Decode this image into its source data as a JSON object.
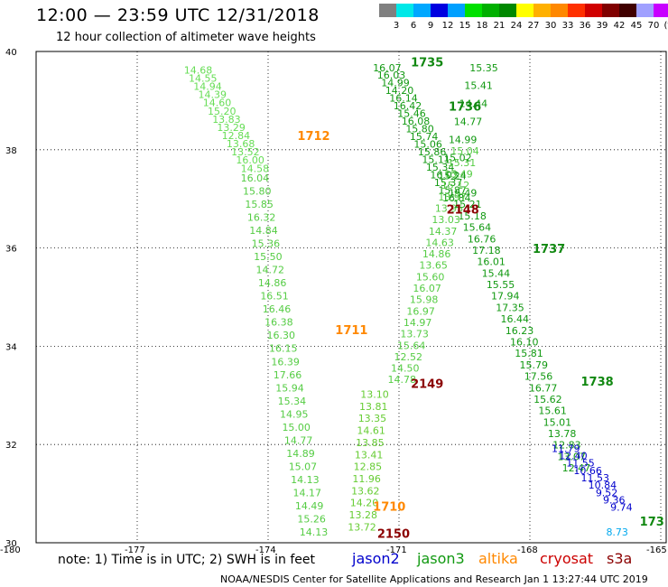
{
  "header": {
    "title": "12:00 — 23:59 UTC 12/31/2018",
    "subtitle": "12 hour collection of altimeter wave heights"
  },
  "legend": {
    "colors": [
      "#808080",
      "#00e8e8",
      "#00a8ff",
      "#0000e0",
      "#00a0ff",
      "#00e000",
      "#00b000",
      "#008800",
      "#ffff00",
      "#ffb000",
      "#ff8800",
      "#ff3000",
      "#d00000",
      "#800000",
      "#400000",
      "#a0a0ff",
      "#c800ff",
      "#000000"
    ],
    "labels": [
      "3",
      "6",
      "9",
      "12",
      "15",
      "18",
      "21",
      "24",
      "27",
      "30",
      "33",
      "36",
      "39",
      "42",
      "45",
      "70",
      "(ft)"
    ]
  },
  "map": {
    "lat_ticks": [
      "40",
      "38",
      "36",
      "34",
      "32",
      "30"
    ],
    "lon_ticks": [
      "-180",
      "-177",
      "-174",
      "-171",
      "-168",
      "-165"
    ],
    "lat_range": [
      30,
      40
    ],
    "lon_range": [
      -180,
      -165
    ]
  },
  "tracks": [
    {
      "name": "track-1712",
      "color": "#66dd55",
      "pass": "1712",
      "pass_color": "#ff8800",
      "pass_pos": [
        -173.2,
        38.2
      ],
      "start": [
        -175.9,
        39.55
      ],
      "end": [
        -174.55,
        37.55
      ],
      "values": [
        "14.68",
        "14.55",
        "14.94",
        "14.39",
        "14.60",
        "15.20",
        "13.83",
        "13.29",
        "12.84",
        "13.68",
        "13.52",
        "16.00",
        "14.58"
      ]
    },
    {
      "name": "track-1711",
      "color": "#55cc44",
      "pass": "1711",
      "pass_color": "#ff8800",
      "pass_pos": [
        -172.3,
        34.25
      ],
      "start": [
        -174.55,
        37.35
      ],
      "end": [
        -173.15,
        30.15
      ],
      "values": [
        "16.04",
        "15.80",
        "15.85",
        "16.32",
        "14.84",
        "15.36",
        "15.50",
        "14.72",
        "14.86",
        "16.51",
        "16.46",
        "16.38",
        "16.30",
        "16.15",
        "16.39",
        "17.66",
        "15.94",
        "15.34",
        "14.95",
        "15.00",
        "14.77",
        "14.89",
        "15.07",
        "14.13",
        "14.17",
        "14.49",
        "15.26",
        "14.13"
      ]
    },
    {
      "name": "track-1710",
      "color": "#66cc33",
      "pass": "1710",
      "pass_color": "#ff8800",
      "pass_pos": [
        -171.4,
        30.65
      ],
      "start": [
        -171.7,
        32.95
      ],
      "end": [
        -172.0,
        30.25
      ],
      "values": [
        "13.10",
        "13.81",
        "13.35",
        "14.61",
        "13.85",
        "13.41",
        "12.85",
        "11.96",
        "13.62",
        "14.20",
        "13.28",
        "13.72"
      ]
    },
    {
      "name": "track-2150",
      "color": "#66cc33",
      "pass": "2150",
      "pass_color": "#8b0000",
      "pass_pos": [
        -171.3,
        30.1
      ],
      "start": [
        -171.2,
        30.4
      ],
      "end": [
        -171.2,
        30.4
      ],
      "values": []
    },
    {
      "name": "track-1735",
      "color": "#119911",
      "pass": "1735",
      "pass_color": "#118811",
      "pass_pos": [
        -170.5,
        39.7
      ],
      "start": [
        -171.4,
        39.6
      ],
      "end": [
        -169.75,
        36.95
      ],
      "values": [
        "16.07",
        "16.03",
        "14.99",
        "14.20",
        "16.14",
        "16.42",
        "15.46",
        "16.08",
        "15.80",
        "15.74",
        "15.06",
        "15.86",
        "15.11",
        "15.34",
        "16.03",
        "15.37",
        "15.87",
        "16.84"
      ]
    },
    {
      "name": "track-2149",
      "color": "#55cc44",
      "pass": "2149",
      "pass_color": "#8b0000",
      "pass_pos": [
        -170.5,
        33.15
      ],
      "start": [
        -169.55,
        37.9
      ],
      "end": [
        -171.05,
        33.25
      ],
      "values": [
        "15.04",
        "15.31",
        "15.49",
        "15.12",
        "13.97",
        "13.95",
        "13.03",
        "14.37",
        "14.63",
        "14.86",
        "13.65",
        "15.60",
        "16.07",
        "15.98",
        "16.97",
        "14.97",
        "13.73",
        "15.64",
        "12.52",
        "14.50",
        "14.78"
      ]
    },
    {
      "name": "track-1736",
      "color": "#119911",
      "pass": "1736",
      "pass_color": "#118811",
      "pass_pos": [
        -169.6,
        38.8
      ],
      "start": [
        -169.1,
        39.6
      ],
      "end": [
        -169.85,
        37.4
      ],
      "values": [
        "15.35",
        "15.41",
        "14.44",
        "14.77",
        "14.99",
        "15.02",
        "15.24"
      ]
    },
    {
      "name": "track-1737",
      "color": "#119911",
      "pass": "1737",
      "pass_color": "#118811",
      "pass_pos": [
        -167.6,
        35.9
      ],
      "start": [
        -169.6,
        37.05
      ],
      "end": [
        -166.9,
        31.45
      ],
      "values": [
        "15.49",
        "15.21",
        "15.18",
        "15.64",
        "16.76",
        "17.18",
        "16.01",
        "15.44",
        "15.55",
        "17.94",
        "17.35",
        "16.44",
        "16.23",
        "16.10",
        "15.81",
        "15.79",
        "17.56",
        "16.77",
        "15.62",
        "15.61",
        "15.01",
        "13.78",
        "12.83",
        "13.07",
        "12.47"
      ]
    },
    {
      "name": "track-1738",
      "color": "#118811",
      "pass": "1738",
      "pass_color": "#118811",
      "pass_pos": [
        -166.45,
        33.2
      ],
      "start": [
        -166.45,
        33.2
      ],
      "end": [
        -166.45,
        33.2
      ],
      "values": []
    },
    {
      "name": "track-2148",
      "color": "#8b0000",
      "pass": "2148",
      "pass_color": "#8b0000",
      "pass_pos": [
        -169.65,
        36.7
      ],
      "start": [
        -169.65,
        36.7
      ],
      "end": [
        -169.65,
        36.7
      ],
      "values": []
    },
    {
      "name": "track-jason2",
      "color": "#0000cc",
      "pass": "",
      "pass_color": "#0000cc",
      "pass_pos": [
        -165.2,
        30.3
      ],
      "start": [
        -167.15,
        31.85
      ],
      "end": [
        -165.75,
        30.65
      ],
      "values": [
        "11.79",
        "12.40",
        "11.55",
        "10.66",
        "11.53",
        "10.84",
        "9.52",
        "9.36",
        "9.74"
      ]
    },
    {
      "name": "track-jason2-tail",
      "color": "#00a8ee",
      "pass": "",
      "pass_color": "#00a8ee",
      "pass_pos": [
        -165.2,
        30.3
      ],
      "start": [
        -165.85,
        30.15
      ],
      "end": [
        -165.85,
        30.15
      ],
      "values": [
        "8.73"
      ]
    },
    {
      "name": "track-173",
      "color": "#118811",
      "pass": "173",
      "pass_color": "#118811",
      "pass_pos": [
        -165.05,
        30.35
      ],
      "start": [
        -165.05,
        30.35
      ],
      "end": [
        -165.05,
        30.35
      ],
      "values": []
    }
  ],
  "footer": {
    "note": "note:  1) Time is in UTC;  2) SWH is in feet",
    "satellites": [
      {
        "name": "jason2",
        "color": "#0000cc"
      },
      {
        "name": "jason3",
        "color": "#119911"
      },
      {
        "name": "altika",
        "color": "#ff8800"
      },
      {
        "name": "cryosat",
        "color": "#cc0000"
      },
      {
        "name": "s3a",
        "color": "#8b0000"
      }
    ],
    "credit": "NOAA/NESDIS Center for Satellite Applications and Research   Jan  1 13:27:44 UTC 2019"
  }
}
